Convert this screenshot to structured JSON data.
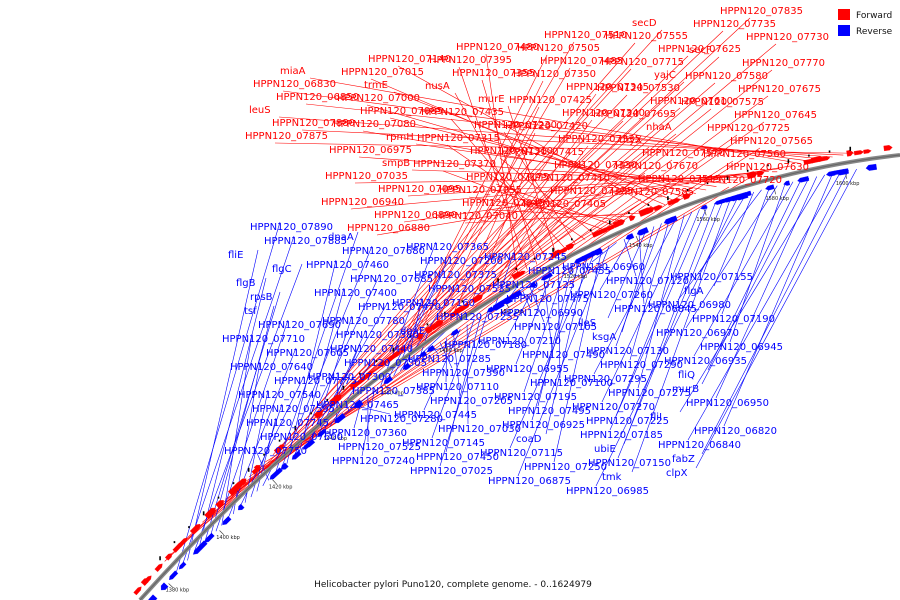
{
  "caption": "Helicobacter pylori Puno120, complete genome. - 0..1624979",
  "legend": {
    "forward": {
      "label": "Forward",
      "color": "#ff0000"
    },
    "reverse": {
      "label": "Reverse",
      "color": "#0000ff"
    }
  },
  "ticks": [
    "1380 kbp",
    "1400 kbp",
    "1420 kbp",
    "1440 kbp",
    "1460 kbp",
    "1480 kbp",
    "1500 kbp",
    "1520 kbp",
    "1540 kbp",
    "1560 kbp",
    "1580 kbp",
    "1600 kbp"
  ],
  "forward_labels": [
    "HPPN120_07835",
    "HPPN120_07735",
    "HPPN120_07730",
    "secF",
    "HPPN120_07770",
    "HPPN120_07580",
    "HPPN120_07675",
    "HPPN120_07575",
    "HPPN120_07645",
    "HPPN120_07725",
    "HPPN120_07565",
    "HPPN120_07560",
    "HPPN120_07630",
    "HPPN120_07720",
    "secD",
    "HPPN120_07555",
    "HPPN120_07625",
    "HPPN120_07715",
    "yajC",
    "HPPN120_07530",
    "HPPN120_07610",
    "HPPN120_07695",
    "nhaA",
    "thyX",
    "HPPN120_07570",
    "HPPN120_07670",
    "HPPN120_07515",
    "HPPN120_07585",
    "HPPN120_07510",
    "HPPN120_07505",
    "HPPN120_07485",
    "HPPN120_07350",
    "HPPN120_07345",
    "HPPN120_07425",
    "HPPN120_07340",
    "HPPN120_07420",
    "HPPN120_07335",
    "HPPN120_07415",
    "HPPN120_07330",
    "HPPN120_07410",
    "HPPN120_07325",
    "HPPN120_07405",
    "HPPN120_07480",
    "HPPN120_07395",
    "HPPN120_07355",
    "nusA",
    "murE",
    "HPPN120_07435",
    "HPPN120_07230",
    "HPPN120_07315",
    "HPPN120_07310",
    "HPPN120_07370",
    "HPPN120_07175",
    "HPPN120_07055",
    "HPPN120_07045",
    "HPPN120_07040",
    "HPPN120_07140",
    "HPPN120_07015",
    "trmE",
    "HPPN120_07000",
    "HPPN120_07085",
    "HPPN120_07080",
    "rpmH",
    "HPPN120_06975",
    "smpB",
    "HPPN120_07035",
    "HPPN120_07095",
    "HPPN120_06940",
    "HPPN120_06890",
    "HPPN120_06880",
    "miaA",
    "HPPN120_06830",
    "HPPN120_06850",
    "leuS",
    "HPPN120_07880",
    "HPPN120_07875"
  ],
  "reverse_labels": [
    "HPPN120_07890",
    "HPPN120_07885",
    "fliE",
    "flgC",
    "flgB",
    "rpsB",
    "tsf",
    "HPPN120_07690",
    "HPPN120_07710",
    "HPPN120_07605",
    "HPPN120_07640",
    "HPPN120_07775",
    "HPPN120_07540",
    "HPPN120_07595",
    "HPPN120_07745",
    "HPPN120_07600",
    "HPPN120_07750",
    "dnaA",
    "HPPN120_07680",
    "HPPN120_07460",
    "HPPN120_07685",
    "HPPN120_07400",
    "HPPN120_07470",
    "HPPN120_07780",
    "HPPN120_07380",
    "HPPN120_07440",
    "HPPN120_07305",
    "HPPN120_07300",
    "HPPN120_07385",
    "HPPN120_07465",
    "HPPN120_07280",
    "HPPN120_07360",
    "HPPN120_07525",
    "HPPN120_07240",
    "HPPN120_07365",
    "HPPN120_07200",
    "HPPN120_07375",
    "HPPN120_07535",
    "HPPN120_07160",
    "HPPN120_07255",
    "dnaE",
    "HPPN120_07180",
    "HPPN120_07285",
    "HPPN120_07390",
    "HPPN120_07110",
    "HPPN120_07205",
    "HPPN120_07445",
    "HPPN120_07030",
    "HPPN120_07145",
    "HPPN120_07450",
    "HPPN120_07025",
    "HPPN120_07245",
    "HPPN120_07455",
    "HPPN120_07125",
    "HPPN120_07475",
    "HPPN120_06990",
    "HPPN120_07105",
    "HPPN120_07210",
    "HPPN120_07490",
    "HPPN120_06955",
    "HPPN120_07100",
    "HPPN120_07195",
    "HPPN120_07495",
    "HPPN120_06925",
    "coaD",
    "HPPN120_07115",
    "HPPN120_07250",
    "HPPN120_06875",
    "HPPN120_06960",
    "HPPN120_07120",
    "HPPN120_07260",
    "HPPN120_06845",
    "ileS",
    "ksgA",
    "HPPN120_07130",
    "HPPN120_07290",
    "HPPN120_07295",
    "HPPN120_07275",
    "HPPN120_07270",
    "HPPN120_07225",
    "HPPN120_07185",
    "ubiE",
    "HPPN120_07150",
    "tmk",
    "HPPN120_06985",
    "HPPN120_07155",
    "flgA",
    "HPPN120_06980",
    "HPPN120_07190",
    "HPPN120_06970",
    "HPPN120_06945",
    "HPPN120_06935",
    "fliQ",
    "murB",
    "HPPN120_06950",
    "fliI",
    "HPPN120_06820",
    "HPPN120_06840",
    "fabZ",
    "clpX"
  ]
}
